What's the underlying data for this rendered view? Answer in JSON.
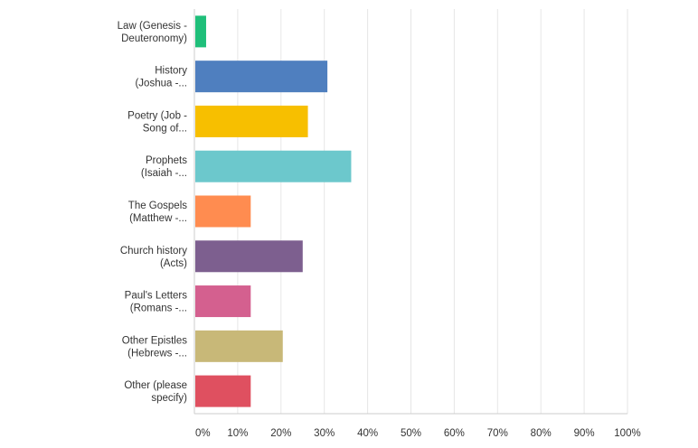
{
  "chart_data": {
    "type": "bar",
    "orientation": "horizontal",
    "categories": [
      [
        "Law (Genesis -",
        "Deuteronomy)"
      ],
      [
        "History",
        "(Joshua -..."
      ],
      [
        "Poetry (Job -",
        "Song of..."
      ],
      [
        "Prophets",
        "(Isaiah -..."
      ],
      [
        "The Gospels",
        "(Matthew -..."
      ],
      [
        "Church history",
        "(Acts)"
      ],
      [
        "Paul's Letters",
        "(Romans -..."
      ],
      [
        "Other Epistles",
        "(Hebrews -..."
      ],
      [
        "Other (please",
        "specify)"
      ]
    ],
    "values": [
      2.5,
      30.5,
      26.0,
      36.0,
      12.8,
      24.8,
      12.8,
      20.2,
      12.8
    ],
    "colors": [
      "#1fbf7a",
      "#4f7fbf",
      "#f7bf00",
      "#6cc8cc",
      "#ff8c50",
      "#7d5f8f",
      "#d4608f",
      "#c8b878",
      "#df5060"
    ],
    "xlim": [
      0,
      100
    ],
    "x_ticks": [
      "0%",
      "10%",
      "20%",
      "30%",
      "40%",
      "50%",
      "60%",
      "70%",
      "80%",
      "90%",
      "100%"
    ],
    "grid": true,
    "title": "",
    "xlabel": "",
    "ylabel": ""
  }
}
